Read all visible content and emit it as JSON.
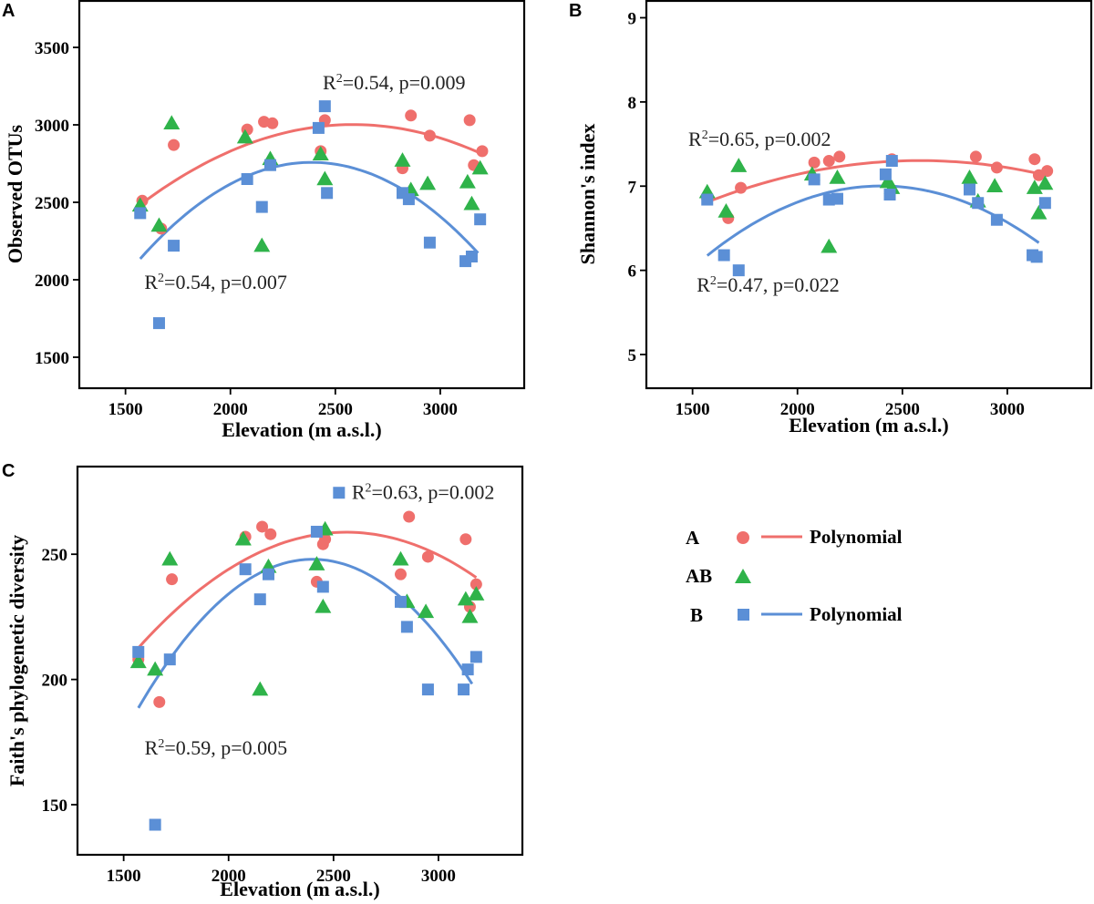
{
  "colors": {
    "A": "#ef6f6c",
    "AB": "#2fb34a",
    "B": "#5b8fd6"
  },
  "legend": {
    "entries": [
      {
        "group": "A",
        "label": "A",
        "marker": "circle",
        "line_label": "Polynomial"
      },
      {
        "group": "AB",
        "label": "AB",
        "marker": "triangle",
        "line_label": ""
      },
      {
        "group": "B",
        "label": "B",
        "marker": "square",
        "line_label": "Polynomial"
      }
    ]
  },
  "chart_data": [
    {
      "panel": "A",
      "type": "scatter",
      "xlabel": "Elevation (m a.s.l.)",
      "ylabel": "Observed OTUs",
      "xlim": [
        1280,
        3400
      ],
      "ylim": [
        1300,
        3800
      ],
      "xticks": [
        1500,
        2000,
        2500,
        3000
      ],
      "yticks": [
        1500,
        2000,
        2500,
        3000,
        3500
      ],
      "series": [
        {
          "name": "A",
          "marker": "circle",
          "x": [
            1580,
            1670,
            1730,
            2080,
            2160,
            2200,
            2430,
            2450,
            2820,
            2860,
            2950,
            3140,
            3160,
            3200
          ],
          "y": [
            2510,
            2330,
            2870,
            2970,
            3020,
            3010,
            2830,
            3030,
            2720,
            3060,
            2930,
            3030,
            2740,
            2830
          ]
        },
        {
          "name": "AB",
          "marker": "triangle",
          "x": [
            1570,
            1660,
            1720,
            2070,
            2150,
            2190,
            2430,
            2450,
            2820,
            2860,
            2940,
            3130,
            3150,
            3190
          ],
          "y": [
            2480,
            2350,
            3010,
            2920,
            2220,
            2780,
            2810,
            2650,
            2770,
            2580,
            2620,
            2630,
            2490,
            2720
          ]
        },
        {
          "name": "B",
          "marker": "square",
          "x": [
            1570,
            1660,
            1730,
            2080,
            2150,
            2190,
            2420,
            2450,
            2460,
            2820,
            2850,
            2950,
            3120,
            3150,
            3190
          ],
          "y": [
            2430,
            1720,
            2220,
            2650,
            2470,
            2740,
            2980,
            3120,
            2560,
            2560,
            2520,
            2240,
            2120,
            2150,
            2390
          ]
        }
      ],
      "fits": [
        {
          "name": "A",
          "type": "polynomial",
          "a": -0.000503,
          "b": 2.6,
          "c": -358,
          "xrange": [
            1570,
            3200
          ]
        },
        {
          "name": "B",
          "type": "polynomial",
          "a": -0.000932,
          "b": 4.45,
          "c": -2554,
          "xrange": [
            1570,
            3180
          ]
        }
      ],
      "annotations": [
        {
          "series": "A",
          "text": "R²=0.54, p=0.009",
          "x": 2440,
          "y": 3230
        },
        {
          "series": "B",
          "text": "R²=0.54, p=0.007",
          "x": 1590,
          "y": 1940
        }
      ]
    },
    {
      "panel": "B",
      "type": "scatter",
      "xlabel": "Elevation (m a.s.l.)",
      "ylabel": "Shannon's index",
      "xlim": [
        1280,
        3400
      ],
      "ylim": [
        4.6,
        9.2
      ],
      "xticks": [
        1500,
        2000,
        2500,
        3000
      ],
      "yticks": [
        5,
        6,
        7,
        8,
        9
      ],
      "series": [
        {
          "name": "A",
          "marker": "circle",
          "x": [
            1570,
            1670,
            1730,
            2080,
            2150,
            2200,
            2450,
            2850,
            2950,
            3130,
            3150,
            3190
          ],
          "y": [
            6.85,
            6.62,
            6.98,
            7.28,
            7.3,
            7.35,
            7.32,
            7.35,
            7.22,
            7.32,
            7.13,
            7.18
          ]
        },
        {
          "name": "AB",
          "marker": "triangle",
          "x": [
            1570,
            1660,
            1720,
            2070,
            2150,
            2190,
            2430,
            2450,
            2820,
            2860,
            2940,
            3130,
            3150,
            3180
          ],
          "y": [
            6.93,
            6.7,
            7.24,
            7.14,
            6.28,
            7.1,
            7.05,
            6.98,
            7.1,
            6.82,
            7.0,
            6.98,
            6.68,
            7.03
          ]
        },
        {
          "name": "B",
          "marker": "square",
          "x": [
            1570,
            1650,
            1720,
            2080,
            2150,
            2190,
            2420,
            2440,
            2450,
            2820,
            2860,
            2950,
            3120,
            3140,
            3180
          ],
          "y": [
            6.84,
            6.18,
            6.0,
            7.08,
            6.84,
            6.85,
            7.14,
            6.9,
            7.3,
            6.96,
            6.8,
            6.6,
            6.18,
            6.16,
            6.8
          ]
        }
      ],
      "fits": [
        {
          "name": "A",
          "type": "polynomial",
          "a": -4.8e-07,
          "b": 0.00248,
          "c": 4.1,
          "xrange": [
            1570,
            3150
          ]
        },
        {
          "name": "B",
          "type": "polynomial",
          "a": -1.2e-06,
          "b": 0.00576,
          "c": 0.09,
          "xrange": [
            1570,
            3150
          ]
        }
      ],
      "annotations": [
        {
          "series": "A",
          "text": "R²=0.65, p=0.002",
          "x": 1480,
          "y": 7.48
        },
        {
          "series": "B",
          "text": "R²=0.47, p=0.022",
          "x": 1520,
          "y": 5.75
        }
      ]
    },
    {
      "panel": "C",
      "type": "scatter",
      "xlabel": "Elevation (m a.s.l.)",
      "ylabel": "Faith's phylogenetic diversity",
      "xlim": [
        1280,
        3400
      ],
      "ylim": [
        130,
        285
      ],
      "xticks": [
        1500,
        2000,
        2500,
        3000
      ],
      "yticks": [
        150,
        200,
        250
      ],
      "series": [
        {
          "name": "A",
          "marker": "circle",
          "x": [
            1570,
            1670,
            1730,
            2080,
            2160,
            2200,
            2420,
            2450,
            2460,
            2820,
            2860,
            2950,
            3130,
            3150,
            3180
          ],
          "y": [
            208,
            191,
            240,
            257,
            261,
            258,
            239,
            254,
            256,
            242,
            265,
            249,
            256,
            229,
            238
          ]
        },
        {
          "name": "AB",
          "marker": "triangle",
          "x": [
            1570,
            1650,
            1720,
            2070,
            2150,
            2190,
            2420,
            2450,
            2460,
            2820,
            2850,
            2940,
            3130,
            3150,
            3180
          ],
          "y": [
            207,
            204,
            248,
            256,
            196,
            245,
            246,
            229,
            260,
            248,
            231,
            227,
            232,
            225,
            234
          ]
        },
        {
          "name": "B",
          "marker": "square",
          "x": [
            1570,
            1650,
            1720,
            2080,
            2150,
            2190,
            2420,
            2450,
            2820,
            2850,
            2950,
            3120,
            3140,
            3180
          ],
          "y": [
            211,
            142,
            208,
            244,
            232,
            242,
            259,
            237,
            231,
            221,
            196,
            196,
            204,
            209
          ]
        }
      ],
      "fits": [
        {
          "name": "A",
          "type": "polynomial",
          "a": -4.71e-05,
          "b": 0.2412,
          "c": -50,
          "xrange": [
            1570,
            3180
          ]
        },
        {
          "name": "B",
          "type": "polynomial",
          "a": -8.61e-05,
          "b": 0.4133,
          "c": -248,
          "xrange": [
            1570,
            3160
          ]
        }
      ],
      "annotations": [
        {
          "series": "B",
          "text": "R²=0.63, p=0.002",
          "x": 2500,
          "y": 272,
          "marker": "square"
        },
        {
          "series": "B",
          "text": "R²=0.59, p=0.005",
          "x": 1600,
          "y": 170
        }
      ]
    }
  ]
}
